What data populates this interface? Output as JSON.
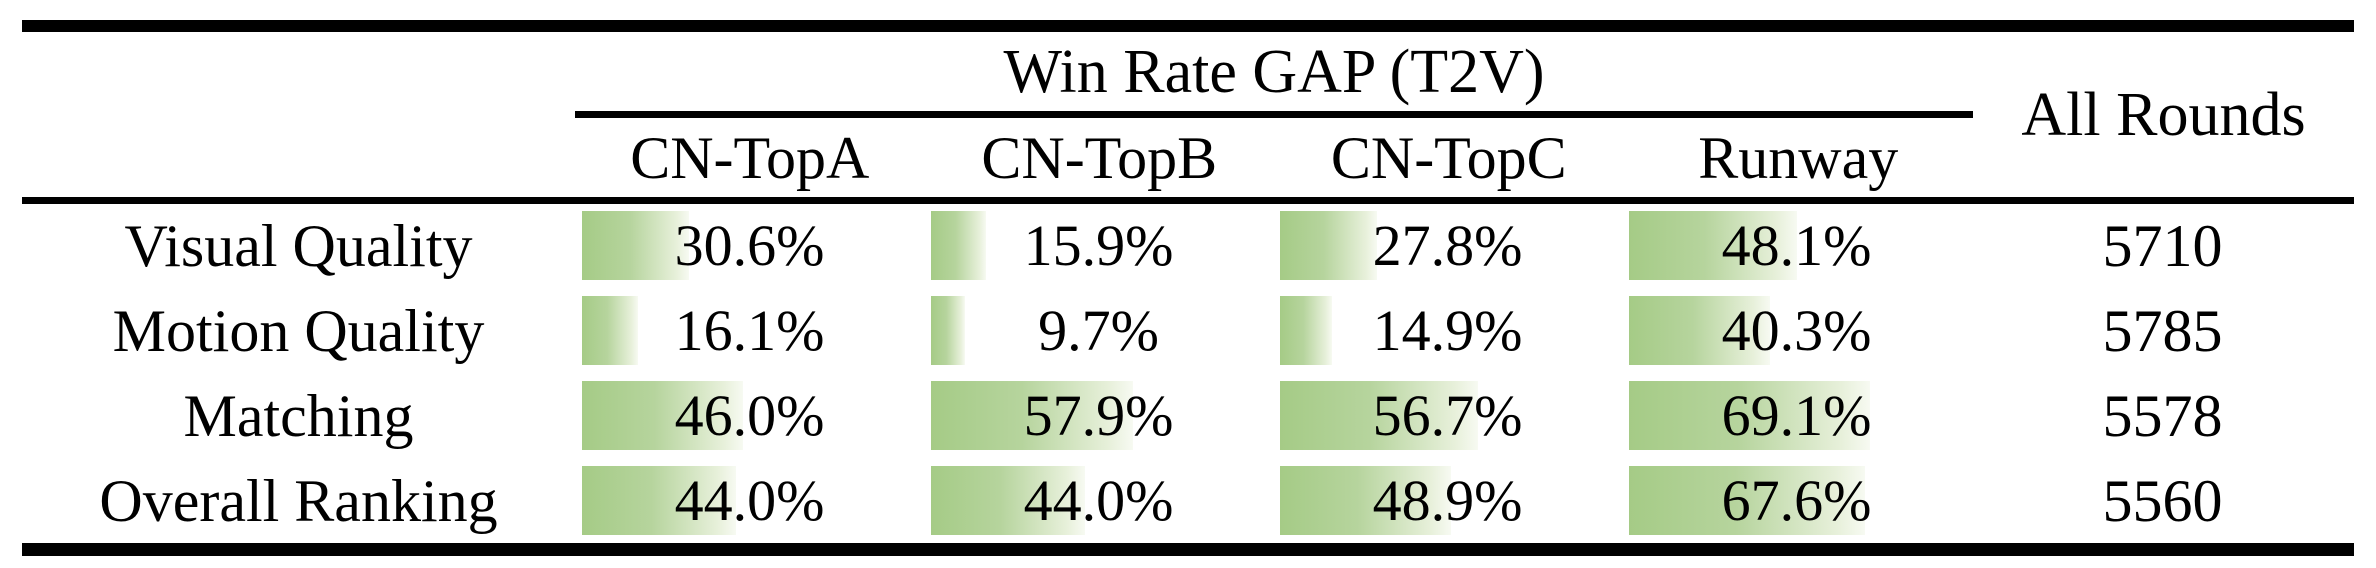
{
  "header": {
    "group_title": "Win Rate GAP (T2V)",
    "all_rounds": "All Rounds",
    "models": [
      "CN-TopA",
      "CN-TopB",
      "CN-TopC",
      "Runway"
    ]
  },
  "rows": [
    {
      "label": "Visual Quality",
      "cells": [
        {
          "pct": 30.6,
          "text": "30.6%"
        },
        {
          "pct": 15.9,
          "text": "15.9%"
        },
        {
          "pct": 27.8,
          "text": "27.8%"
        },
        {
          "pct": 48.1,
          "text": "48.1%"
        }
      ],
      "all_rounds": "5710"
    },
    {
      "label": "Motion Quality",
      "cells": [
        {
          "pct": 16.1,
          "text": "16.1%"
        },
        {
          "pct": 9.7,
          "text": "9.7%"
        },
        {
          "pct": 14.9,
          "text": "14.9%"
        },
        {
          "pct": 40.3,
          "text": "40.3%"
        }
      ],
      "all_rounds": "5785"
    },
    {
      "label": "Matching",
      "cells": [
        {
          "pct": 46.0,
          "text": "46.0%"
        },
        {
          "pct": 57.9,
          "text": "57.9%"
        },
        {
          "pct": 56.7,
          "text": "56.7%"
        },
        {
          "pct": 69.1,
          "text": "69.1%"
        }
      ],
      "all_rounds": "5578"
    },
    {
      "label": "Overall Ranking",
      "cells": [
        {
          "pct": 44.0,
          "text": "44.0%"
        },
        {
          "pct": 44.0,
          "text": "44.0%"
        },
        {
          "pct": 48.9,
          "text": "48.9%"
        },
        {
          "pct": 67.6,
          "text": "67.6%"
        }
      ],
      "all_rounds": "5560"
    }
  ],
  "colors": {
    "background": "#ffffff",
    "rule": "#000000",
    "text": "#000000",
    "bar_gradient_start": "#a5cb86",
    "bar_gradient_mid": "#b6d49d",
    "bar_gradient_late": "#e7f0da",
    "bar_gradient_end": "#f7faf2"
  },
  "chart_data": {
    "type": "table",
    "title": "Win Rate GAP (T2V)",
    "categories": [
      "Visual Quality",
      "Motion Quality",
      "Matching",
      "Overall Ranking"
    ],
    "series": [
      {
        "name": "CN-TopA",
        "unit": "%",
        "values": [
          30.6,
          16.1,
          46.0,
          44.0
        ]
      },
      {
        "name": "CN-TopB",
        "unit": "%",
        "values": [
          15.9,
          9.7,
          57.9,
          44.0
        ]
      },
      {
        "name": "CN-TopC",
        "unit": "%",
        "values": [
          27.8,
          14.9,
          56.7,
          48.9
        ]
      },
      {
        "name": "Runway",
        "unit": "%",
        "values": [
          48.1,
          40.3,
          69.1,
          67.6
        ]
      }
    ],
    "extra_column": {
      "name": "All Rounds",
      "values": [
        5710,
        5785,
        5578,
        5560
      ]
    },
    "bar_style": "left-anchored green gradient data bar, width = value% of cell width, bar range 0-100%"
  }
}
